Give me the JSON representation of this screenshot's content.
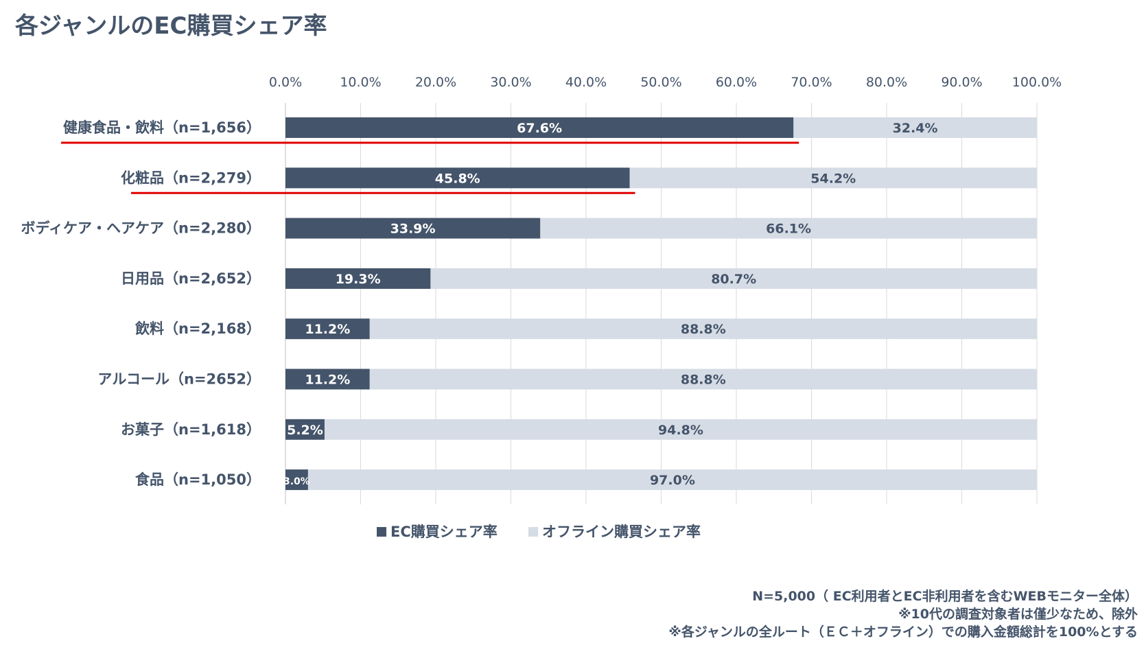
{
  "title": "各ジャンルのEC購買シェア率",
  "chart_data": {
    "type": "bar",
    "orientation": "horizontal",
    "stacked": true,
    "title": "各ジャンルのEC購買シェア率",
    "xlim": [
      0,
      100
    ],
    "x_ticks": [
      "0.0%",
      "10.0%",
      "20.0%",
      "30.0%",
      "40.0%",
      "50.0%",
      "60.0%",
      "70.0%",
      "80.0%",
      "90.0%",
      "100.0%"
    ],
    "x_axis_position": "top",
    "grid": true,
    "categories": [
      "健康食品・飲料（n=1,656）",
      "化粧品（n=2,279）",
      "ボディケア・ヘアケア（n=2,280）",
      "日用品（n=2,652）",
      "飲料（n=2,168）",
      "アルコール（n=2652）",
      "お菓子（n=1,618）",
      "食品（n=1,050）"
    ],
    "series": [
      {
        "name": "EC購買シェア率",
        "color": "#44546a",
        "values": [
          67.6,
          45.8,
          33.9,
          19.3,
          11.2,
          11.2,
          5.2,
          3.0
        ],
        "labels": [
          "67.6%",
          "45.8%",
          "33.9%",
          "19.3%",
          "11.2%",
          "11.2%",
          "5.2%",
          "3.0%"
        ]
      },
      {
        "name": "オフライン購買シェア率",
        "color": "#d6dce5",
        "values": [
          32.4,
          54.2,
          66.1,
          80.7,
          88.8,
          88.8,
          94.8,
          97.0
        ],
        "labels": [
          "32.4%",
          "54.2%",
          "66.1%",
          "80.7%",
          "88.8%",
          "88.8%",
          "94.8%",
          "97.0%"
        ]
      }
    ],
    "highlight": {
      "color": "#e00000",
      "rows": [
        0,
        1
      ],
      "style": "red underline"
    },
    "legend": {
      "placement": "bottom-center"
    }
  },
  "notes": [
    "N=5,000（ EC利用者とEC非利用者を含むWEBモニター全体）",
    "※10代の調査対象者は僅少なため、除外",
    "※各ジャンルの全ルート（ＥＣ＋オフライン）での購入金額総計を100%とする"
  ]
}
